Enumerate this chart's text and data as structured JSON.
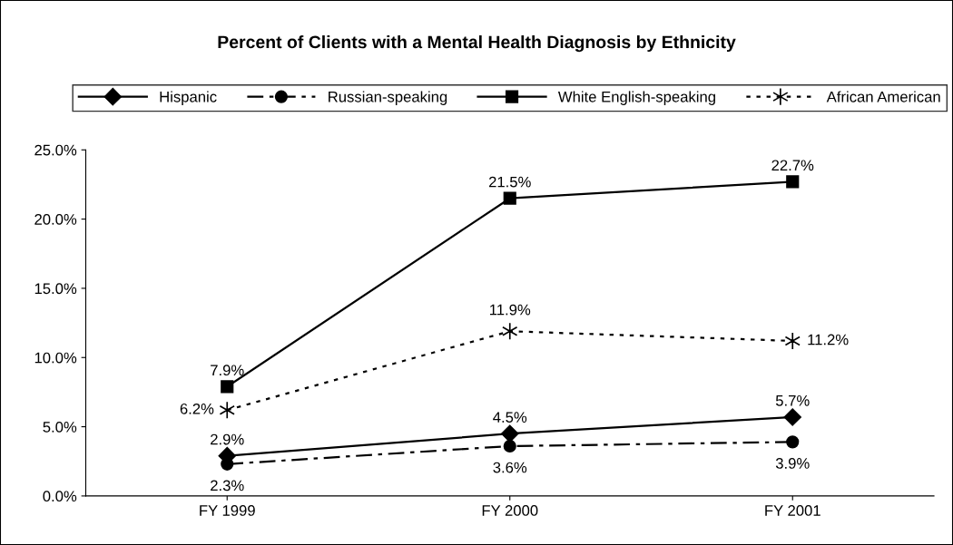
{
  "chart_data": {
    "type": "line",
    "title": "Percent of Clients with a Mental Health Diagnosis by Ethnicity",
    "categories": [
      "FY 1999",
      "FY 2000",
      "FY 2001"
    ],
    "series": [
      {
        "name": "Hispanic",
        "color": "#000000",
        "values": [
          2.9,
          4.5,
          5.7
        ],
        "value_labels": [
          "2.9%",
          "4.5%",
          "5.7%"
        ],
        "marker": "diamond",
        "line_style": "solid"
      },
      {
        "name": "Russian-speaking",
        "color": "#000000",
        "values": [
          2.3,
          3.6,
          3.9
        ],
        "value_labels": [
          "2.3%",
          "3.6%",
          "3.9%"
        ],
        "marker": "circle",
        "line_style": "dashed"
      },
      {
        "name": "White English-speaking",
        "color": "#000000",
        "values": [
          7.9,
          21.5,
          22.7
        ],
        "value_labels": [
          "7.9%",
          "21.5%",
          "22.7%"
        ],
        "marker": "square",
        "line_style": "solid"
      },
      {
        "name": "African American",
        "color": "#000000",
        "values": [
          6.2,
          11.9,
          11.2
        ],
        "value_labels": [
          "6.2%",
          "11.9%",
          "11.2%"
        ],
        "marker": "cross",
        "line_style": "dotted"
      }
    ],
    "ylim": [
      0,
      25
    ],
    "yticks": [
      {
        "value": 0,
        "label": "0.0%"
      },
      {
        "value": 5,
        "label": "5.0%"
      },
      {
        "value": 10,
        "label": "10.0%"
      },
      {
        "value": 15,
        "label": "15.0%"
      },
      {
        "value": 20,
        "label": "20.0%"
      },
      {
        "value": 25,
        "label": "25.0%"
      }
    ],
    "grid": false,
    "legend": "top"
  }
}
